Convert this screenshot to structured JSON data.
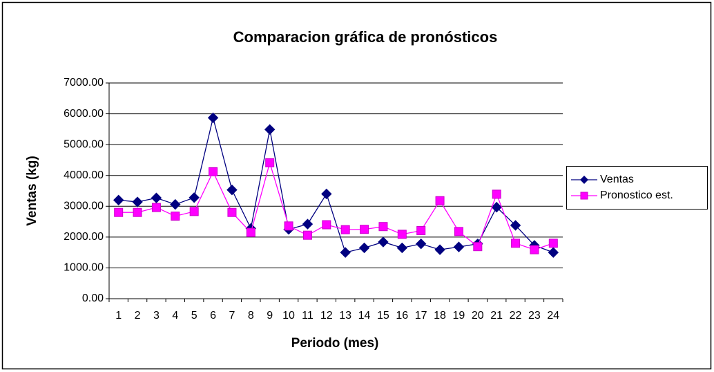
{
  "chart_data": {
    "type": "line",
    "title": "Comparacion gráfica de pronósticos",
    "x_label": "Periodo (mes)",
    "y_label": "Ventas (kg)",
    "categories": [
      "1",
      "2",
      "3",
      "4",
      "5",
      "6",
      "7",
      "8",
      "9",
      "10",
      "11",
      "12",
      "13",
      "14",
      "15",
      "16",
      "17",
      "18",
      "19",
      "20",
      "21",
      "22",
      "23",
      "24"
    ],
    "series": [
      {
        "name": "Ventas",
        "color": "#000080",
        "marker": "diamond",
        "values": [
          3200,
          3140,
          3270,
          3060,
          3280,
          5870,
          3530,
          2280,
          5490,
          2250,
          2420,
          3400,
          1500,
          1650,
          1840,
          1650,
          1780,
          1590,
          1680,
          1780,
          2970,
          2380,
          1730,
          1500
        ]
      },
      {
        "name": "Pronostico est.",
        "color": "#ff00ff",
        "marker": "square",
        "values": [
          2800,
          2800,
          2960,
          2680,
          2830,
          4120,
          2800,
          2150,
          4410,
          2360,
          2060,
          2400,
          2240,
          2250,
          2340,
          2090,
          2210,
          3180,
          2180,
          1690,
          3390,
          1800,
          1590,
          1800
        ]
      }
    ],
    "ylim": [
      0,
      7000
    ],
    "yticks": [
      {
        "value": 0,
        "label": "0.00"
      },
      {
        "value": 1000,
        "label": "1000.00"
      },
      {
        "value": 2000,
        "label": "2000.00"
      },
      {
        "value": 3000,
        "label": "3000.00"
      },
      {
        "value": 4000,
        "label": "4000.00"
      },
      {
        "value": 5000,
        "label": "5000.00"
      },
      {
        "value": 6000,
        "label": "6000.00"
      },
      {
        "value": 7000,
        "label": "7000.00"
      }
    ],
    "grid": true,
    "legend": "right"
  }
}
